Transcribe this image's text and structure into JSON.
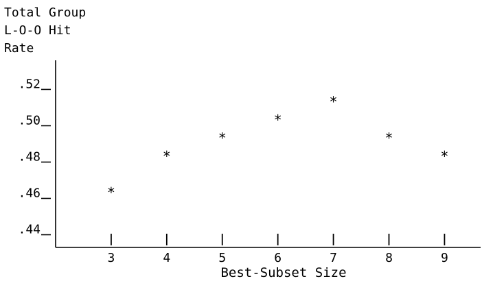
{
  "chart_data": {
    "type": "scatter",
    "title": "",
    "ylabel_lines": [
      "Total Group",
      "L-O-O Hit",
      "Rate"
    ],
    "xlabel": "Best-Subset Size",
    "marker": "*",
    "x": [
      3,
      4,
      5,
      6,
      7,
      8,
      9
    ],
    "y": [
      0.462,
      0.482,
      0.492,
      0.502,
      0.512,
      0.492,
      0.482
    ],
    "xticks": [
      3,
      4,
      5,
      6,
      7,
      8,
      9
    ],
    "xtick_labels": [
      "3",
      "4",
      "5",
      "6",
      "7",
      "8",
      "9"
    ],
    "yticks": [
      0.52,
      0.5,
      0.48,
      0.46,
      0.44
    ],
    "ytick_labels": [
      ".52",
      ".50",
      ".48",
      ".46",
      ".44"
    ],
    "xlim": [
      2,
      9.65
    ],
    "ylim": [
      0.43,
      0.533
    ],
    "grid": false,
    "colors": {
      "ink": "#000000",
      "background": "#ffffff"
    }
  }
}
